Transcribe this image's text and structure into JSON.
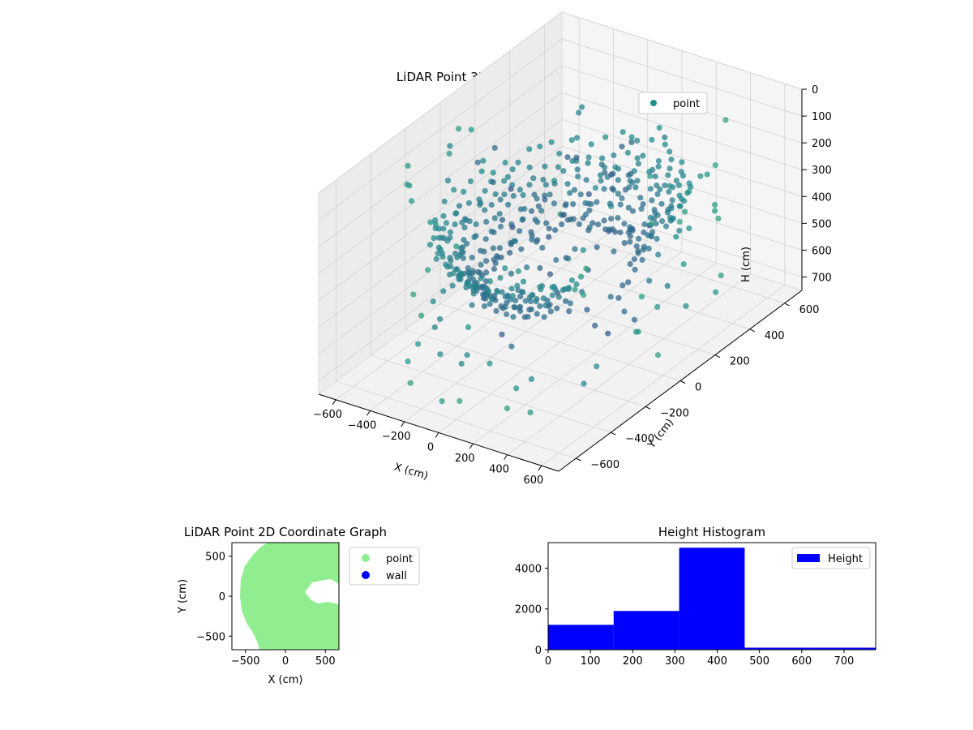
{
  "chart_data": [
    {
      "type": "scatter",
      "title": "LiDAR Point 3D Coordinate Graph",
      "xlabel": "X (cm)",
      "ylabel": "Y (cm)",
      "zlabel": "H (cm)",
      "xlim": [
        -700,
        700
      ],
      "ylim": [
        -700,
        700
      ],
      "zlim": [
        0,
        750
      ],
      "z_inverted": true,
      "xticks": [
        -600,
        -400,
        -200,
        0,
        200,
        400,
        600
      ],
      "yticks": [
        -600,
        -400,
        -200,
        0,
        200,
        400,
        600
      ],
      "zticks": [
        0,
        100,
        200,
        300,
        400,
        500,
        600,
        700
      ],
      "colormap": "viridis",
      "marker_color": "#2a8a8a",
      "legend": {
        "position": "upper right",
        "entries": [
          {
            "label": "point",
            "color": "#21908d"
          }
        ]
      },
      "series": [
        {
          "name": "point"
        }
      ]
    },
    {
      "type": "scatter",
      "title": "LiDAR Point 2D Coordinate Graph",
      "xlabel": "X (cm)",
      "ylabel": "Y (cm)",
      "xlim": [
        -670,
        670
      ],
      "ylim": [
        -670,
        670
      ],
      "xticks": [
        -500,
        0,
        500
      ],
      "yticks": [
        -500,
        0,
        500
      ],
      "legend": {
        "position": "outside right",
        "entries": [
          {
            "label": "point",
            "color": "#90ee90"
          },
          {
            "label": "wall",
            "color": "#0000ff"
          }
        ]
      },
      "series": [
        {
          "name": "point",
          "color": "#90ee90"
        },
        {
          "name": "wall",
          "color": "#0000ff"
        }
      ]
    },
    {
      "type": "bar",
      "title": "Height Histogram",
      "xlabel": "",
      "ylabel": "",
      "xlim": [
        0,
        775
      ],
      "ylim": [
        0,
        5250
      ],
      "xticks": [
        0,
        100,
        200,
        300,
        400,
        500,
        600,
        700
      ],
      "yticks": [
        0,
        2000,
        4000
      ],
      "bins": [
        {
          "start": 0,
          "end": 155,
          "count": 1220
        },
        {
          "start": 155,
          "end": 310,
          "count": 1900
        },
        {
          "start": 310,
          "end": 465,
          "count": 5000
        },
        {
          "start": 465,
          "end": 620,
          "count": 100
        },
        {
          "start": 620,
          "end": 775,
          "count": 100
        }
      ],
      "bar_color": "#0000ff",
      "legend": {
        "position": "upper right",
        "entries": [
          {
            "label": "Height",
            "color": "#0000ff"
          }
        ]
      },
      "series": [
        {
          "name": "Height",
          "color": "#0000ff"
        }
      ]
    }
  ]
}
